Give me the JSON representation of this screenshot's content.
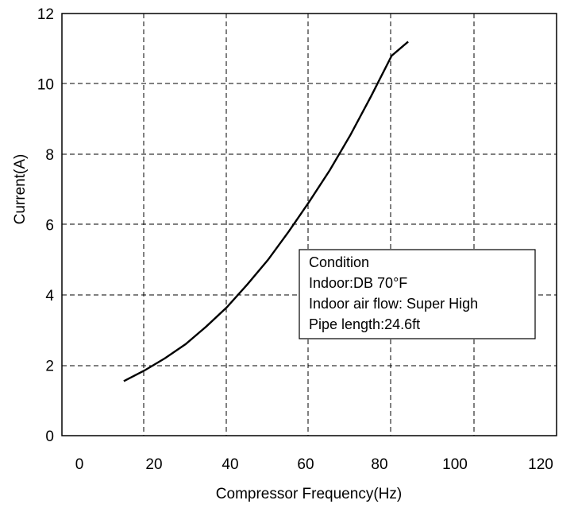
{
  "chart_data": {
    "type": "line",
    "title": "",
    "xlabel": "Compressor Frequency(Hz)",
    "ylabel": "Current(A)",
    "xlim": [
      0,
      120
    ],
    "ylim": [
      0,
      12
    ],
    "grid": true,
    "x_ticks": [
      "0",
      "20",
      "40",
      "60",
      "80",
      "100",
      "120"
    ],
    "y_ticks": [
      "0",
      "2",
      "4",
      "6",
      "8",
      "10",
      "12"
    ],
    "series": [
      {
        "x": [
          15,
          20,
          25,
          30,
          35,
          40,
          45,
          50,
          55,
          60,
          65,
          70,
          75,
          80,
          84
        ],
        "y": [
          1.55,
          1.85,
          2.2,
          2.6,
          3.1,
          3.65,
          4.3,
          5.0,
          5.8,
          6.65,
          7.55,
          8.55,
          9.65,
          10.8,
          11.2
        ]
      }
    ],
    "annotation": {
      "lines": [
        "Condition",
        "Indoor:DB 70°F",
        "Indoor air flow: Super High",
        "Pipe length:24.6ft"
      ]
    }
  }
}
